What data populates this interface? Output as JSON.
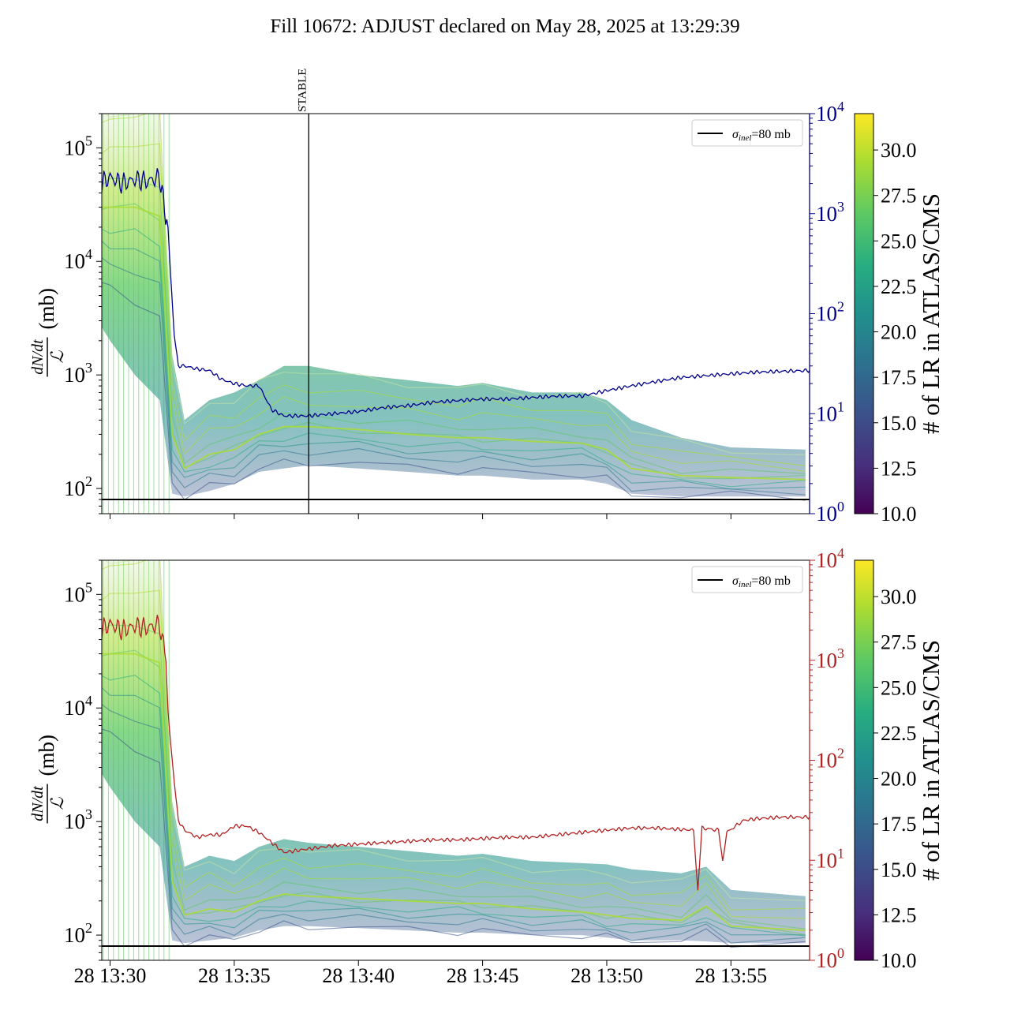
{
  "figure": {
    "title": "Fill 10672: ADJUST declared on May 28, 2025 at 13:29:39"
  },
  "colors": {
    "top_right_series": "#00008b",
    "bottom_right_series": "#b22222",
    "reference_line": "#000000",
    "colormap": [
      "#440154",
      "#3b528b",
      "#21908d",
      "#5dc963",
      "#fde725"
    ]
  },
  "chart_data": [
    {
      "type": "line",
      "panel": "top",
      "ylabel_left": "dN/dt / ℒ (mb)",
      "ylabel_right": "",
      "yscale": "log",
      "ylim_left": [
        60,
        200000
      ],
      "ylim_right": [
        1,
        10000
      ],
      "left_ticks": [
        "10^2",
        "10^3",
        "10^4",
        "10^5"
      ],
      "right_ticks": [
        "10^0",
        "10^1",
        "10^2",
        "10^3",
        "10^4"
      ],
      "x_ticks": [
        "",
        "",
        "",
        "",
        "",
        ""
      ],
      "grid": false,
      "legend": {
        "position": "top-right",
        "entries": [
          "σinel=80 mb"
        ]
      },
      "reference_line": {
        "label": "σinel=80 mb",
        "value": 80
      },
      "annotations": [
        {
          "text": "STABLE",
          "time": "13:38:00"
        }
      ],
      "colorbar": {
        "label": "# of LR in ATLAS/CMS",
        "range": [
          10,
          32
        ],
        "ticks": [
          "10.0",
          "12.5",
          "15.0",
          "17.5",
          "20.0",
          "22.5",
          "25.0",
          "27.5",
          "30.0"
        ]
      },
      "band": {
        "description_of_values": "ensemble of per-bunch cross-sections, lower/upper envelope in mb",
        "x": [
          "13:29:30",
          "13:30:00",
          "13:31:00",
          "13:32:00",
          "13:32:30",
          "13:33:00",
          "13:34:00",
          "13:35:00",
          "13:36:00",
          "13:37:00",
          "13:38:00",
          "13:40:00",
          "13:42:00",
          "13:44:00",
          "13:45:00",
          "13:47:00",
          "13:49:00",
          "13:50:00",
          "13:51:00",
          "13:53:00",
          "13:55:00",
          "13:58:00"
        ],
        "low": [
          3000,
          2000,
          1000,
          600,
          90,
          85,
          95,
          110,
          140,
          150,
          160,
          150,
          140,
          130,
          130,
          120,
          120,
          110,
          90,
          85,
          85,
          85
        ],
        "high": [
          200000,
          200000,
          200000,
          200000,
          1500,
          400,
          600,
          700,
          900,
          1200,
          1200,
          1000,
          900,
          800,
          850,
          700,
          700,
          600,
          400,
          280,
          230,
          220
        ],
        "median": [
          30000,
          30000,
          30000,
          25000,
          300,
          150,
          200,
          220,
          300,
          350,
          350,
          330,
          300,
          280,
          280,
          260,
          250,
          220,
          150,
          130,
          125,
          120
        ]
      },
      "series": [
        {
          "name": "",
          "axis": "right",
          "x": [
            "13:29:30",
            "13:29:45",
            "13:30:00",
            "13:30:30",
            "13:31:00",
            "13:31:30",
            "13:32:00",
            "13:32:20",
            "13:32:35",
            "13:32:45",
            "13:33:00",
            "13:33:30",
            "13:34:00",
            "13:34:30",
            "13:35:00",
            "13:35:30",
            "13:36:00",
            "13:36:30",
            "13:37:00",
            "13:38:00",
            "13:39:00",
            "13:40:00",
            "13:41:00",
            "13:42:00",
            "13:43:00",
            "13:44:00",
            "13:45:00",
            "13:46:00",
            "13:47:00",
            "13:48:00",
            "13:49:00",
            "13:50:00",
            "13:51:00",
            "13:52:00",
            "13:53:00",
            "13:54:00",
            "13:55:00",
            "13:56:00",
            "13:57:00",
            "13:58:10"
          ],
          "values": [
            1700,
            2100,
            2300,
            2000,
            2200,
            2100,
            2300,
            700,
            60,
            30,
            30,
            28,
            27,
            22,
            20,
            19,
            19,
            11,
            9.5,
            9.5,
            10,
            10.5,
            11.5,
            12,
            13,
            13.5,
            14,
            14,
            14.5,
            15,
            15,
            17,
            19,
            21,
            23,
            24,
            25,
            26,
            26.5,
            27
          ]
        }
      ]
    },
    {
      "type": "line",
      "panel": "bottom",
      "ylabel_left": "dN/dt / ℒ (mb)",
      "ylabel_right": "",
      "yscale": "log",
      "ylim_left": [
        60,
        200000
      ],
      "ylim_right": [
        1,
        10000
      ],
      "left_ticks": [
        "10^2",
        "10^3",
        "10^4",
        "10^5"
      ],
      "right_ticks": [
        "10^0",
        "10^1",
        "10^2",
        "10^3",
        "10^4"
      ],
      "x_ticks": [
        "28 13:30",
        "28 13:35",
        "28 13:40",
        "28 13:45",
        "28 13:50",
        "28 13:55"
      ],
      "grid": false,
      "legend": {
        "position": "top-right",
        "entries": [
          "σinel=80 mb"
        ]
      },
      "reference_line": {
        "label": "σinel=80 mb",
        "value": 80
      },
      "colorbar": {
        "label": "# of LR in ATLAS/CMS",
        "range": [
          10,
          32
        ],
        "ticks": [
          "10.0",
          "12.5",
          "15.0",
          "17.5",
          "20.0",
          "22.5",
          "25.0",
          "27.5",
          "30.0"
        ]
      },
      "band": {
        "description_of_values": "ensemble of per-bunch cross-sections, lower/upper envelope in mb",
        "x": [
          "13:29:30",
          "13:30:00",
          "13:31:00",
          "13:32:00",
          "13:32:30",
          "13:33:00",
          "13:34:00",
          "13:35:00",
          "13:36:00",
          "13:37:00",
          "13:38:00",
          "13:40:00",
          "13:42:00",
          "13:44:00",
          "13:45:00",
          "13:47:00",
          "13:49:00",
          "13:50:00",
          "13:51:00",
          "13:53:00",
          "13:54:00",
          "13:55:00",
          "13:58:00"
        ],
        "low": [
          3000,
          2000,
          1000,
          600,
          90,
          85,
          90,
          95,
          110,
          120,
          120,
          115,
          110,
          105,
          105,
          100,
          100,
          95,
          90,
          90,
          88,
          85,
          85
        ],
        "high": [
          200000,
          200000,
          200000,
          200000,
          1500,
          400,
          500,
          450,
          600,
          700,
          650,
          600,
          550,
          500,
          520,
          450,
          430,
          420,
          380,
          350,
          400,
          250,
          220
        ],
        "median": [
          30000,
          30000,
          30000,
          25000,
          300,
          150,
          170,
          160,
          200,
          230,
          220,
          210,
          200,
          190,
          190,
          170,
          160,
          150,
          140,
          135,
          180,
          120,
          110
        ]
      },
      "series": [
        {
          "name": "",
          "axis": "right",
          "x": [
            "13:29:30",
            "13:29:45",
            "13:30:00",
            "13:30:30",
            "13:31:00",
            "13:31:30",
            "13:32:00",
            "13:32:15",
            "13:32:20",
            "13:32:35",
            "13:32:45",
            "13:33:00",
            "13:33:30",
            "13:34:00",
            "13:34:30",
            "13:35:00",
            "13:35:30",
            "13:36:00",
            "13:37:00",
            "13:38:00",
            "13:39:00",
            "13:40:00",
            "13:41:00",
            "13:42:00",
            "13:43:00",
            "13:44:00",
            "13:45:00",
            "13:46:00",
            "13:47:00",
            "13:48:00",
            "13:49:00",
            "13:50:00",
            "13:51:00",
            "13:52:00",
            "13:53:30",
            "13:53:40",
            "13:53:50",
            "13:54:30",
            "13:54:40",
            "13:54:50",
            "13:55:30",
            "13:56:00",
            "13:57:00",
            "13:58:10"
          ],
          "values": [
            1700,
            2100,
            2300,
            2000,
            2200,
            2100,
            2300,
            1000,
            300,
            60,
            25,
            20,
            17,
            18,
            18,
            22,
            22,
            19,
            12,
            13,
            14,
            14.5,
            15,
            15.5,
            16,
            16,
            16.5,
            17,
            17,
            18,
            19,
            20,
            21,
            21,
            20,
            5,
            21,
            20,
            10,
            19,
            25,
            26,
            27,
            27
          ]
        }
      ]
    }
  ],
  "legend_line_label_sigma": "σ",
  "legend_line_label_sub": "inel",
  "legend_line_label_rest": "=80 mb",
  "axis_label_parts": {
    "numerator": "dN/dt",
    "denominator": "ℒ",
    "unit": "(mb)"
  }
}
